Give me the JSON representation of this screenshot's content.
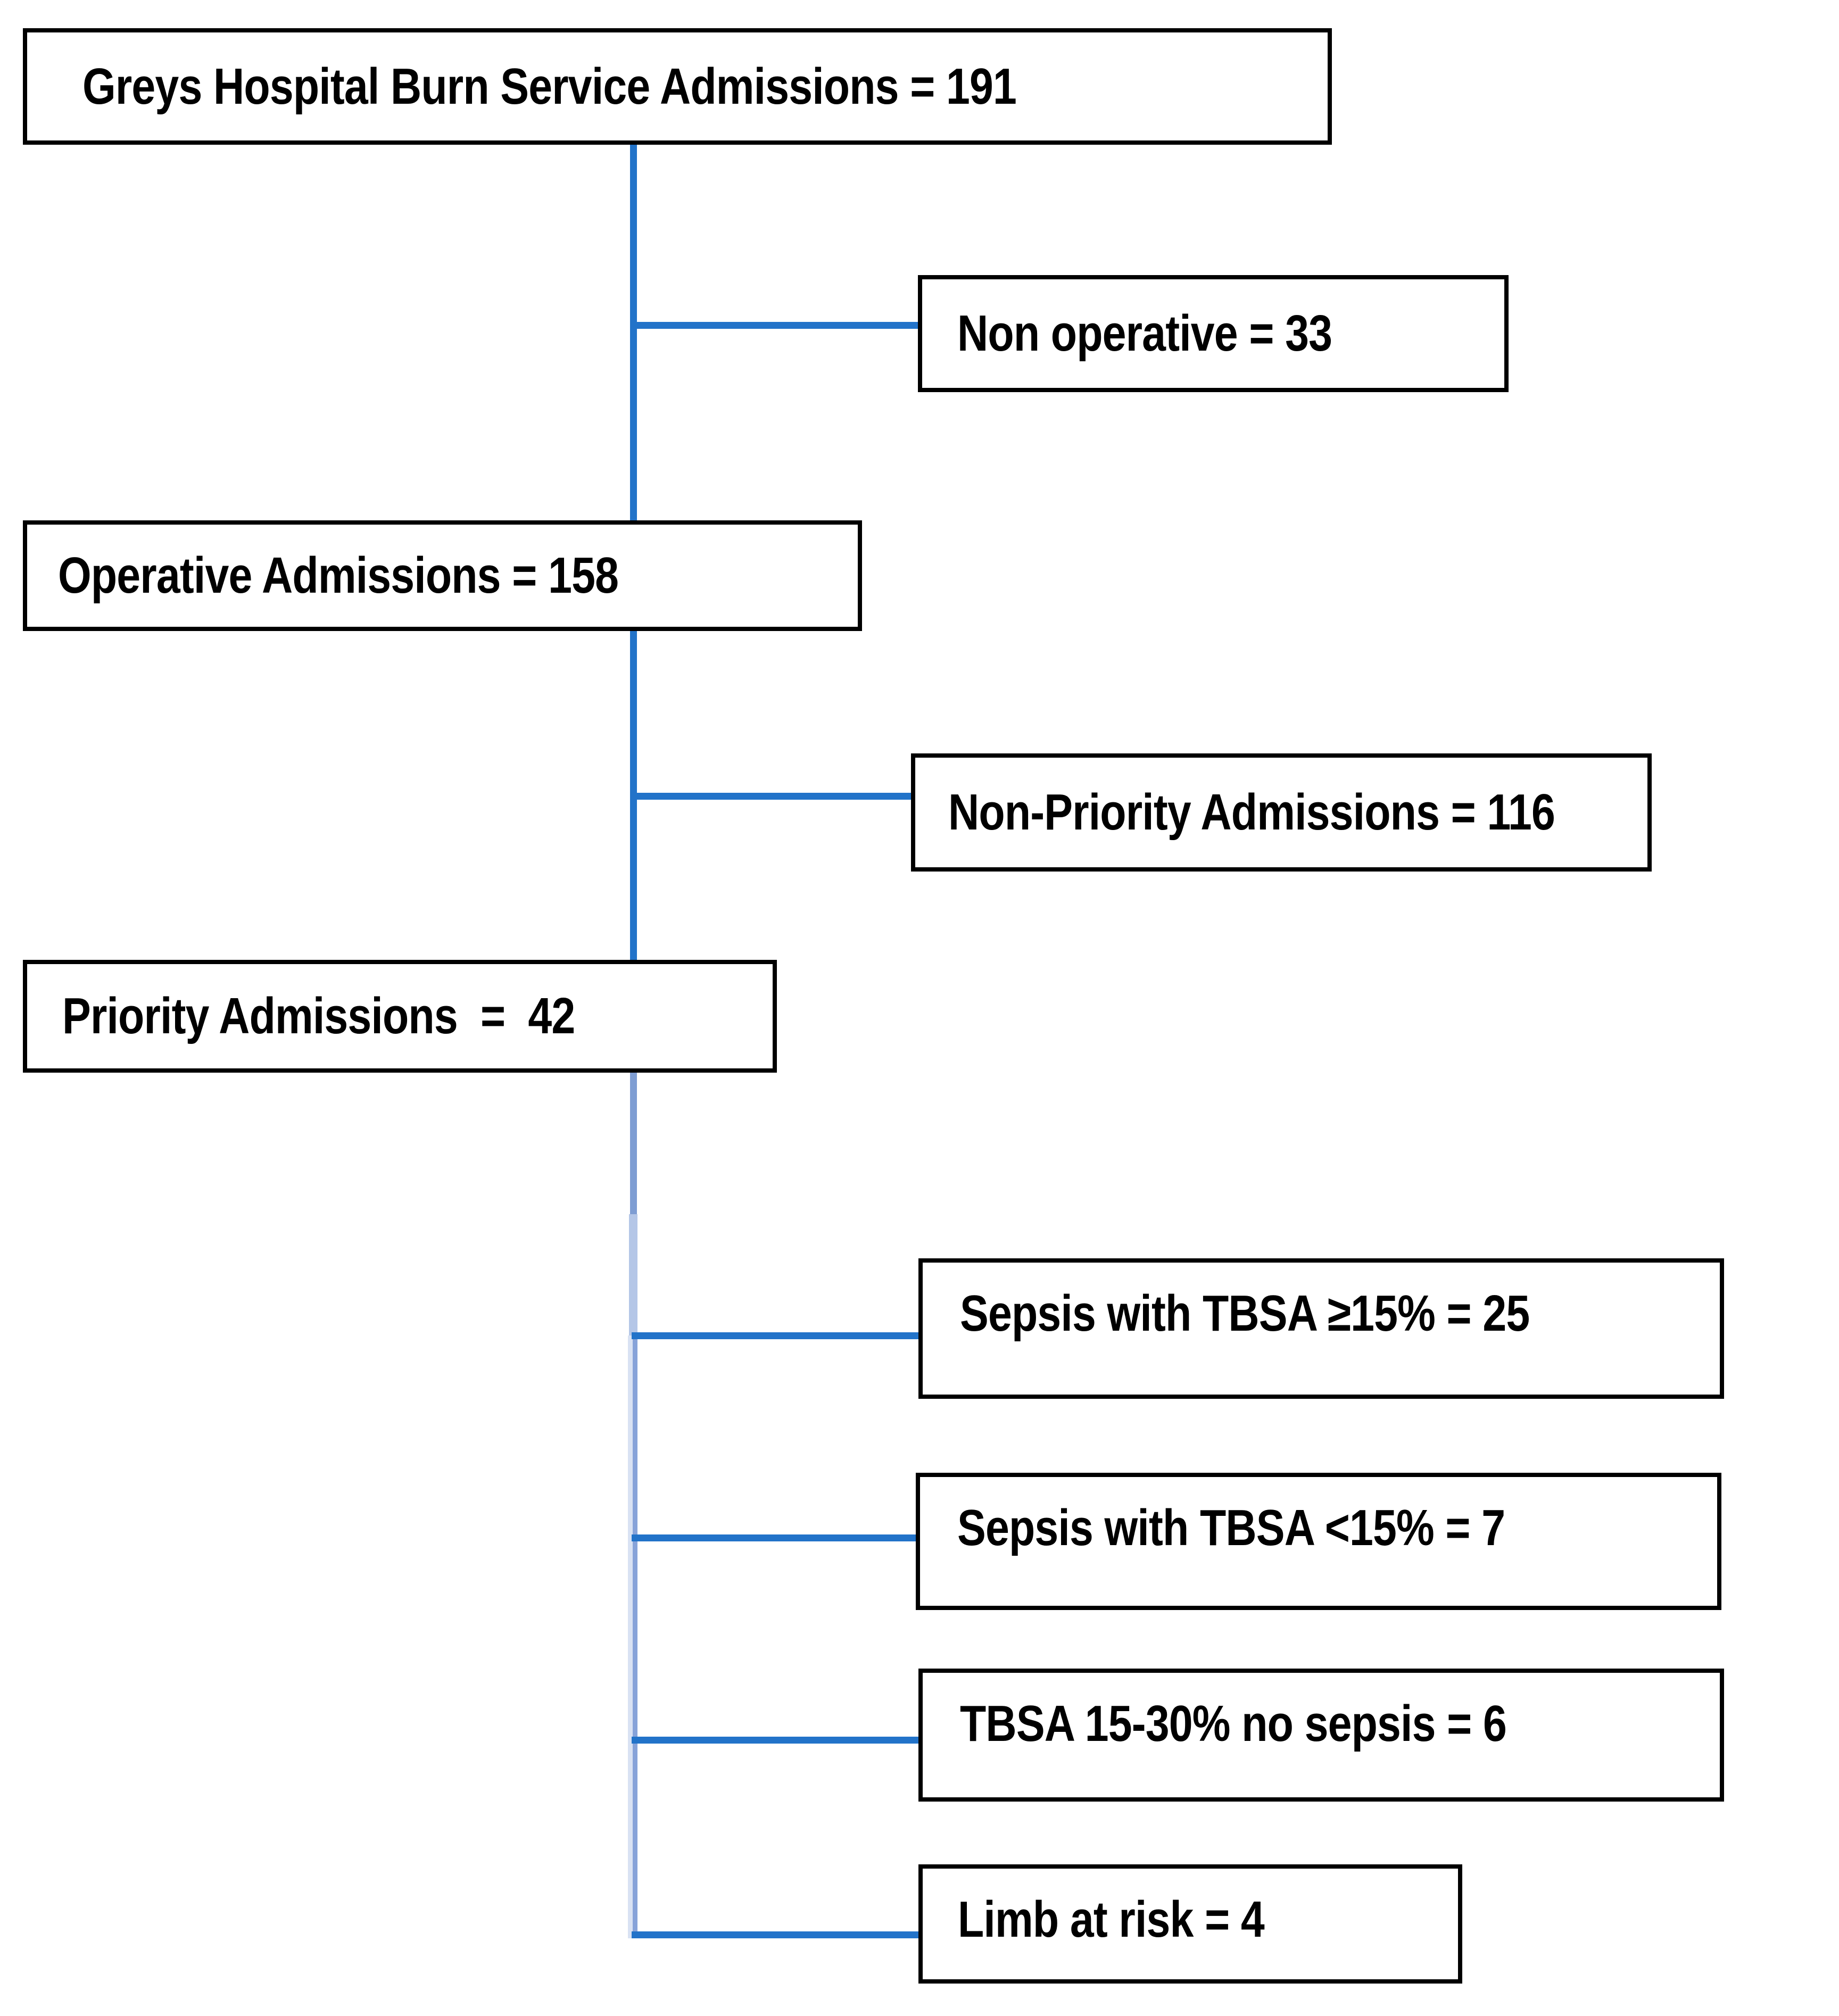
{
  "figure": {
    "type": "flowchart",
    "nodes": [
      {
        "id": "admissions-total",
        "label": "Greys Hospital Burn Service Admissions = 191"
      },
      {
        "id": "non-operative",
        "label": "Non operative = 33"
      },
      {
        "id": "operative",
        "label": "Operative Admissions = 158"
      },
      {
        "id": "non-priority",
        "label": "Non-Priority Admissions = 116"
      },
      {
        "id": "priority",
        "label": "Priority Admissions  =  42"
      },
      {
        "id": "sepsis-tbsa-ge-15",
        "label": "Sepsis with TBSA ≥15% = 25"
      },
      {
        "id": "sepsis-tbsa-lt-15",
        "label": "Sepsis with TBSA <15% = 7"
      },
      {
        "id": "tbsa-15-30-no-sepsis",
        "label": "TBSA 15-30% no sepsis = 6"
      },
      {
        "id": "limb-at-risk",
        "label": "Limb at risk = 4"
      }
    ],
    "edges": [
      {
        "from": "admissions-total",
        "to": "non-operative"
      },
      {
        "from": "admissions-total",
        "to": "operative"
      },
      {
        "from": "operative",
        "to": "non-priority"
      },
      {
        "from": "operative",
        "to": "priority"
      },
      {
        "from": "priority",
        "to": "sepsis-tbsa-ge-15"
      },
      {
        "from": "priority",
        "to": "sepsis-tbsa-lt-15"
      },
      {
        "from": "priority",
        "to": "tbsa-15-30-no-sepsis"
      },
      {
        "from": "priority",
        "to": "limb-at-risk"
      }
    ],
    "colors": {
      "box_border": "#000000",
      "box_background": "#ffffff",
      "text": "#000000",
      "connector_strong": "#2273C9",
      "connector_medium_light": "#7E9DD3",
      "connector_light": "#B4C6E7",
      "connector_pale": "#D9E2F3",
      "connector_soft": "#87A3D9"
    }
  }
}
